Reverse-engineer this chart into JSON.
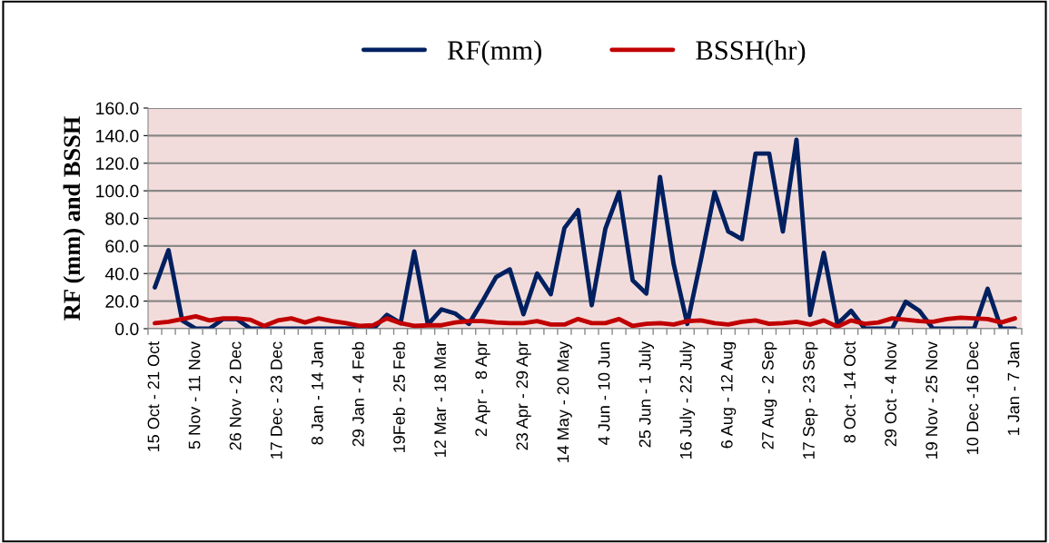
{
  "chart_data": {
    "type": "line",
    "ylabel": "RF (mm) and BSSH",
    "categories": [
      "15 Oct - 21 Oct",
      null,
      null,
      "5 Nov - 11 Nov",
      null,
      null,
      "26 Nov - 2 Dec",
      null,
      null,
      "17 Dec - 23 Dec",
      null,
      null,
      "8 Jan - 14 Jan",
      null,
      null,
      "29 Jan - 4 Feb",
      null,
      null,
      "19Feb - 25 Feb",
      null,
      null,
      "12 Mar - 18 Mar",
      null,
      null,
      "2 Apr -  8 Apr",
      null,
      null,
      "23 Apr - 29 Apr",
      null,
      null,
      "14 May - 20 May",
      null,
      null,
      "4 Jun - 10 Jun",
      null,
      null,
      "25 Jun - 1 July",
      null,
      null,
      "16 July - 22 July",
      null,
      null,
      "6 Aug - 12 Aug",
      null,
      null,
      "27 Aug - 2 Sep",
      null,
      null,
      "17 Sep - 23 Sep",
      null,
      null,
      "8 Oct - 14 Oct",
      null,
      null,
      "29 Oct - 4 Nov",
      null,
      null,
      "19 Nov - 25 Nov",
      null,
      null,
      "10 Dec -16 Dec",
      null,
      null,
      "1 Jan - 7 Jan"
    ],
    "series": [
      {
        "name": "RF(mm)",
        "color": "#002060",
        "values": [
          30,
          57,
          6,
          0,
          0,
          7,
          7,
          0,
          0,
          0,
          0,
          0,
          0,
          0,
          0,
          0,
          0,
          10,
          4,
          56,
          3,
          14,
          11,
          3.5,
          20,
          37.5,
          43,
          10.5,
          40,
          25,
          73,
          86,
          17,
          72.5,
          99,
          35,
          25.5,
          110,
          47,
          3.5,
          50,
          99,
          70.5,
          65,
          127,
          127,
          70.5,
          137,
          10,
          55,
          3.5,
          13,
          0,
          0,
          0,
          19.5,
          13,
          0,
          0,
          0,
          0,
          29,
          0,
          0
        ]
      },
      {
        "name": "BSSH(hr)",
        "color": "#c00000",
        "values": [
          4,
          5,
          7,
          9,
          6,
          7.5,
          7.5,
          6.5,
          2,
          6,
          7.5,
          4.5,
          7.5,
          5.5,
          4,
          2,
          2.5,
          7.5,
          4,
          2,
          2.5,
          2.5,
          4.5,
          5.5,
          5.5,
          4.5,
          4,
          4,
          5.5,
          3,
          3,
          7,
          4,
          4,
          7,
          2,
          3.5,
          4,
          3,
          5.5,
          6,
          4,
          3,
          5,
          6,
          3.5,
          4,
          5,
          3,
          6,
          1.5,
          6,
          3.5,
          4.5,
          7.5,
          6.5,
          5.5,
          5,
          7,
          8,
          7.5,
          7,
          4.5,
          7.5
        ]
      }
    ],
    "ylim": [
      0,
      160
    ],
    "yticks": [
      {
        "value": 0,
        "label": "0.0"
      },
      {
        "value": 20,
        "label": "20.0"
      },
      {
        "value": 40,
        "label": "40.0"
      },
      {
        "value": 60,
        "label": "60.0"
      },
      {
        "value": 80,
        "label": "80.0"
      },
      {
        "value": 100,
        "label": "100.0"
      },
      {
        "value": 120,
        "label": "120.0"
      },
      {
        "value": 140,
        "label": "140.0"
      },
      {
        "value": 160,
        "label": "160.0"
      }
    ],
    "grid": "y",
    "legend": "top",
    "marker": "none",
    "line_style": "solid"
  }
}
